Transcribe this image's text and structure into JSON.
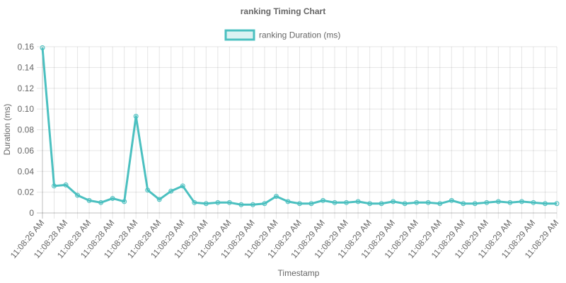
{
  "chart_data": {
    "type": "line",
    "title": "ranking Timing Chart",
    "xlabel": "Timestamp",
    "ylabel": "Duration (ms)",
    "ylim": [
      0,
      0.16
    ],
    "y_ticks": [
      "0",
      "0.02",
      "0.04",
      "0.06",
      "0.08",
      "0.10",
      "0.12",
      "0.14",
      "0.16"
    ],
    "grid": true,
    "legend_position": "top",
    "categories": [
      "11:08:26 AM",
      "11:08:28 AM",
      "11:08:28 AM",
      "11:08:28 AM",
      "11:08:28 AM",
      "11:08:28 AM",
      "11:08:28 AM",
      "11:08:28 AM",
      "11:08:28 AM",
      "11:08:28 AM",
      "11:08:28 AM",
      "11:08:28 AM",
      "11:08:29 AM",
      "11:08:29 AM",
      "11:08:29 AM",
      "11:08:29 AM",
      "11:08:29 AM",
      "11:08:29 AM",
      "11:08:29 AM",
      "11:08:29 AM",
      "11:08:29 AM",
      "11:08:29 AM",
      "11:08:29 AM",
      "11:08:29 AM",
      "11:08:29 AM",
      "11:08:29 AM",
      "11:08:29 AM",
      "11:08:29 AM",
      "11:08:29 AM",
      "11:08:29 AM",
      "11:08:29 AM",
      "11:08:29 AM",
      "11:08:29 AM",
      "11:08:29 AM",
      "11:08:29 AM",
      "11:08:29 AM",
      "11:08:29 AM",
      "11:08:29 AM",
      "11:08:29 AM",
      "11:08:29 AM",
      "11:08:29 AM",
      "11:08:29 AM",
      "11:08:29 AM",
      "11:08:29 AM",
      "11:08:29 AM"
    ],
    "series": [
      {
        "name": "ranking Duration (ms)",
        "color": "#4bc0c0",
        "fill": "rgba(75,192,192,0.2)",
        "values": [
          0.159,
          0.026,
          0.027,
          0.017,
          0.012,
          0.01,
          0.014,
          0.011,
          0.093,
          0.022,
          0.013,
          0.021,
          0.026,
          0.01,
          0.009,
          0.01,
          0.01,
          0.008,
          0.008,
          0.009,
          0.016,
          0.011,
          0.009,
          0.009,
          0.012,
          0.01,
          0.01,
          0.011,
          0.009,
          0.009,
          0.011,
          0.009,
          0.01,
          0.01,
          0.009,
          0.012,
          0.009,
          0.009,
          0.01,
          0.011,
          0.01,
          0.011,
          0.01,
          0.009,
          0.009
        ]
      }
    ]
  }
}
